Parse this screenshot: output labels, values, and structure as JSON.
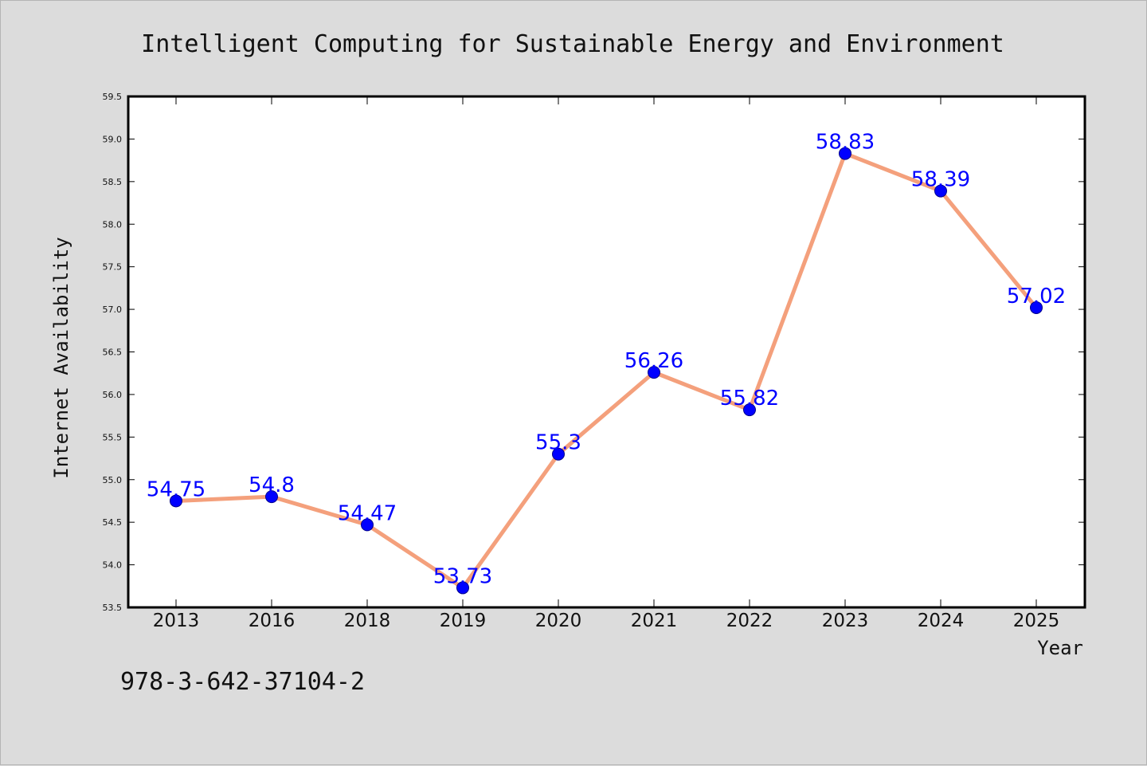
{
  "chart_data": {
    "type": "line",
    "title": "Intelligent Computing for Sustainable Energy and Environment",
    "xlabel": "Year",
    "ylabel": "Internet Availability",
    "categories": [
      "2013",
      "2016",
      "2018",
      "2019",
      "2020",
      "2021",
      "2022",
      "2023",
      "2024",
      "2025"
    ],
    "series": [
      {
        "values": [
          54.75,
          54.8,
          54.47,
          53.73,
          55.3,
          56.26,
          55.82,
          58.83,
          58.39,
          57.02
        ],
        "labels": [
          "54.75",
          "54.8",
          "54.47",
          "53.73",
          "55.3",
          "56.26",
          "55.82",
          "58.83",
          "58.39",
          "57.02"
        ],
        "line_color": "#f4a07c",
        "marker_color": "#0000ff"
      }
    ],
    "ylim": [
      53.5,
      59.5
    ],
    "yticks": [
      "53.5",
      "54.0",
      "54.5",
      "55.0",
      "55.5",
      "56.0",
      "56.5",
      "57.0",
      "57.5",
      "58.0",
      "58.5",
      "59.0",
      "59.5"
    ],
    "grid": false,
    "legend": "none"
  },
  "footer": {
    "isbn": "978-3-642-37104-2"
  }
}
